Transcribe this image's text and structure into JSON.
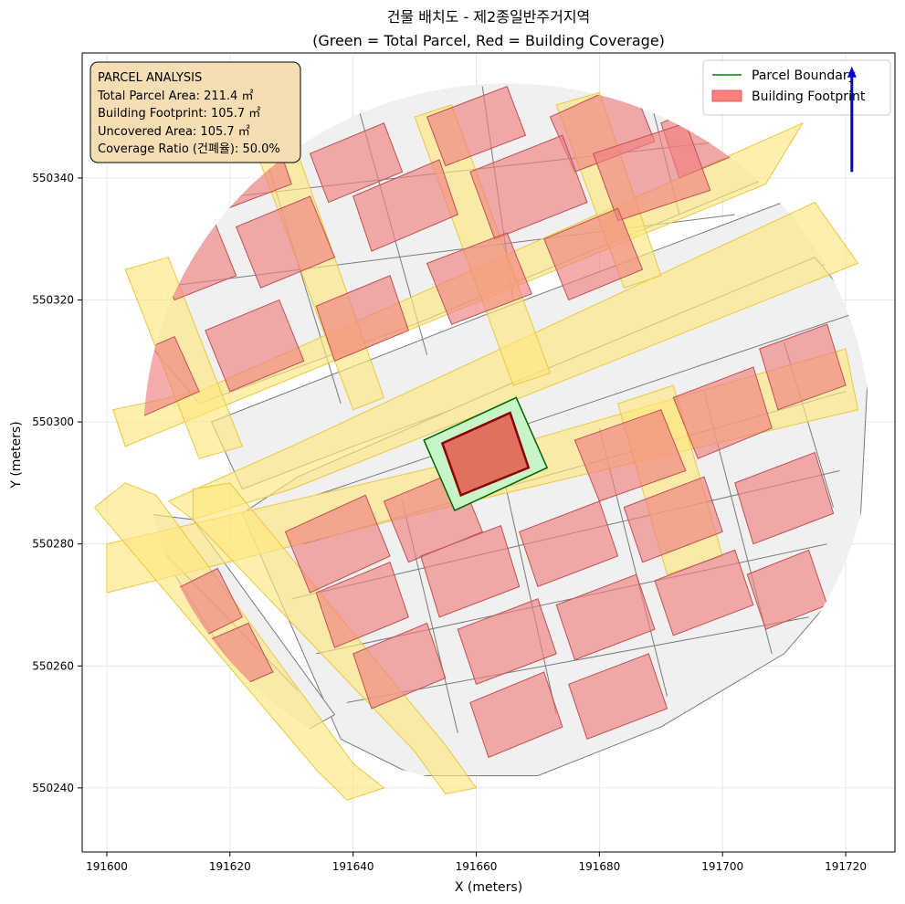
{
  "chart_data": {
    "type": "map",
    "title_line1": "건물 배치도 - 제2종일반주거지역",
    "title_line2": "(Green = Total Parcel, Red = Building Coverage)",
    "xlabel": "X (meters)",
    "ylabel": "Y (meters)",
    "xlim": [
      191596,
      191728
    ],
    "ylim": [
      550229.5,
      550360.5
    ],
    "xticks": [
      191600,
      191620,
      191640,
      191660,
      191680,
      191700,
      191720
    ],
    "yticks": [
      550240,
      550260,
      550280,
      550300,
      550320,
      550340
    ],
    "grid": true,
    "legend_position": "top-right",
    "legend": [
      {
        "label": "Parcel Boundary",
        "kind": "line",
        "color": "#008000"
      },
      {
        "label": "Building Footprint",
        "kind": "patch",
        "color": "#ff7f7f"
      }
    ],
    "info_box": {
      "lines": [
        "PARCEL ANALYSIS",
        "Total Parcel Area: 211.4 ㎡",
        "Building Footprint: 105.7 ㎡",
        "Uncovered Area: 105.7 ㎡",
        "Coverage Ratio (건폐율): 50.0%"
      ],
      "position": "top-left"
    },
    "colors": {
      "parcel_fill": "#f0f0f0",
      "parcel_edge": "#7a7a7a",
      "road_fill": "#ffe680",
      "building_fill": "#f08080",
      "building_edge": "#c05050",
      "target_parcel_fill": "#c8f5c8",
      "target_parcel_edge": "#006400",
      "target_building_fill": "#e07060",
      "target_building_edge": "#8b0000",
      "info_box_fill": "#f5deb3",
      "north_arrow": "#0000dd"
    },
    "target_parcel": [
      [
        191651.5,
        550297.0
      ],
      [
        191666.5,
        550304.0
      ],
      [
        191671.5,
        550292.5
      ],
      [
        191656.5,
        550285.5
      ]
    ],
    "target_building": [
      [
        191654.5,
        550296.5
      ],
      [
        191665.5,
        550301.5
      ],
      [
        191668.5,
        550292.5
      ],
      [
        191657.5,
        550288.0
      ]
    ],
    "north_arrow": {
      "x": 191721,
      "y_from": 550341,
      "y_to": 550358
    },
    "clip_ellipse": {
      "cx": 191665,
      "cy": 550298,
      "rx": 59,
      "ry": 57.5
    },
    "roads": [
      [
        [
          191601,
          550302
        ],
        [
          191615,
          550305
        ],
        [
          191713,
          550349
        ],
        [
          191707,
          550339
        ],
        [
          191603,
          550296
        ]
      ],
      [
        [
          191610,
          550287
        ],
        [
          191630,
          550296
        ],
        [
          191715,
          550336
        ],
        [
          191722,
          550326
        ],
        [
          191630,
          550289
        ],
        [
          191614,
          550284
        ]
      ],
      [
        [
          191600,
          550280
        ],
        [
          191655,
          550293
        ],
        [
          191720,
          550312
        ],
        [
          191722,
          550302
        ],
        [
          191655,
          550286
        ],
        [
          191600,
          550272
        ]
      ],
      [
        [
          191603,
          550290
        ],
        [
          191608,
          550288
        ],
        [
          191640,
          550244
        ],
        [
          191645,
          550240
        ],
        [
          191639,
          550238
        ],
        [
          191634,
          550243
        ],
        [
          191598,
          550286
        ]
      ],
      [
        [
          191614,
          550289
        ],
        [
          191620,
          550290
        ],
        [
          191655,
          550247
        ],
        [
          191660,
          550240
        ],
        [
          191655,
          550239
        ],
        [
          191650,
          550246
        ],
        [
          191614,
          550284
        ]
      ],
      [
        [
          191624,
          550345
        ],
        [
          191630,
          550347
        ],
        [
          191645,
          550304
        ],
        [
          191640,
          550302
        ]
      ],
      [
        [
          191650,
          550350
        ],
        [
          191656,
          550352
        ],
        [
          191672,
          550308
        ],
        [
          191666,
          550306
        ]
      ],
      [
        [
          191673,
          550352
        ],
        [
          191680,
          550354
        ],
        [
          191690,
          550324
        ],
        [
          191684,
          550322
        ]
      ],
      [
        [
          191683,
          550303
        ],
        [
          191692,
          550306
        ],
        [
          191700,
          550278
        ],
        [
          191691,
          550275
        ]
      ],
      [
        [
          191603,
          550325
        ],
        [
          191610,
          550327
        ],
        [
          191622,
          550296
        ],
        [
          191615,
          550294
        ]
      ]
    ],
    "parcels": [
      [
        [
          191612,
          550340
        ],
        [
          191630,
          550348
        ],
        [
          191652,
          550355
        ],
        [
          191680,
          550357
        ],
        [
          191705,
          550352
        ],
        [
          191712,
          550342
        ],
        [
          191650,
          550316
        ],
        [
          191615,
          550303
        ],
        [
          191605,
          550315
        ]
      ],
      [
        [
          191617,
          550300
        ],
        [
          191660,
          550317
        ],
        [
          191715,
          550338
        ],
        [
          191722,
          550328
        ],
        [
          191680,
          550311
        ],
        [
          191640,
          550296
        ],
        [
          191622,
          550289
        ]
      ],
      [
        [
          191631,
          550291
        ],
        [
          191665,
          550306
        ],
        [
          191715,
          550327
        ],
        [
          191724,
          550316
        ],
        [
          191723,
          550296
        ],
        [
          191722,
          550276
        ],
        [
          191710,
          550262
        ],
        [
          191690,
          550250
        ],
        [
          191670,
          550242
        ],
        [
          191650,
          550242
        ],
        [
          191638,
          550248
        ],
        [
          191622,
          550285
        ]
      ],
      [
        [
          191606,
          550285
        ],
        [
          191612,
          550270
        ],
        [
          191622,
          550255
        ],
        [
          191630,
          550248
        ],
        [
          191637,
          550252
        ],
        [
          191614,
          550284
        ]
      ]
    ],
    "parcel_lines": [
      [
        [
          191625,
          550346
        ],
        [
          191638,
          550303
        ]
      ],
      [
        [
          191641,
          550351
        ],
        [
          191652,
          550311
        ]
      ],
      [
        [
          191661,
          550355
        ],
        [
          191666,
          550320
        ]
      ],
      [
        [
          191688,
          550354
        ],
        [
          191693,
          550334
        ]
      ],
      [
        [
          191612,
          550336
        ],
        [
          191700,
          550346
        ]
      ],
      [
        [
          191608,
          550322
        ],
        [
          191702,
          550334
        ]
      ],
      [
        [
          191634,
          550288
        ],
        [
          191722,
          550318
        ]
      ],
      [
        [
          191632,
          550280
        ],
        [
          191720,
          550305
        ]
      ],
      [
        [
          191630,
          550271
        ],
        [
          191719,
          550292
        ]
      ],
      [
        [
          191634,
          550262
        ],
        [
          191717,
          550280
        ]
      ],
      [
        [
          191639,
          550254
        ],
        [
          191714,
          550268
        ]
      ],
      [
        [
          191648,
          550287
        ],
        [
          191657,
          550249
        ]
      ],
      [
        [
          191664,
          550293
        ],
        [
          191673,
          550252
        ]
      ],
      [
        [
          191680,
          550299
        ],
        [
          191691,
          550255
        ]
      ],
      [
        [
          191697,
          550305
        ],
        [
          191708,
          550262
        ]
      ],
      [
        [
          191710,
          550313
        ],
        [
          191718,
          550286
        ]
      ],
      [
        [
          191611,
          550275
        ],
        [
          191626,
          550251
        ]
      ],
      [
        [
          191606,
          550282
        ],
        [
          191631,
          550256
        ]
      ]
    ],
    "buildings": [
      [
        [
          191614,
          550343
        ],
        [
          191627,
          550348
        ],
        [
          191630,
          550339
        ],
        [
          191617,
          550334
        ]
      ],
      [
        [
          191633,
          550344
        ],
        [
          191645,
          550349
        ],
        [
          191648,
          550341
        ],
        [
          191636,
          550336
        ]
      ],
      [
        [
          191652,
          550350
        ],
        [
          191665,
          550355
        ],
        [
          191668,
          550347
        ],
        [
          191655,
          550342
        ]
      ],
      [
        [
          191672,
          550350
        ],
        [
          191685,
          550356
        ],
        [
          191689,
          550346
        ],
        [
          191676,
          550341
        ]
      ],
      [
        [
          191690,
          550349
        ],
        [
          191702,
          550354
        ],
        [
          191705,
          550345
        ],
        [
          191693,
          550340
        ]
      ],
      [
        [
          191607,
          550330
        ],
        [
          191617,
          550334
        ],
        [
          191621,
          550324
        ],
        [
          191611,
          550320
        ]
      ],
      [
        [
          191621,
          550332
        ],
        [
          191633,
          550337
        ],
        [
          191637,
          550327
        ],
        [
          191625,
          550322
        ]
      ],
      [
        [
          191640,
          550337
        ],
        [
          191654,
          550343
        ],
        [
          191657,
          550334
        ],
        [
          191643,
          550328
        ]
      ],
      [
        [
          191659,
          550341
        ],
        [
          191674,
          550347
        ],
        [
          191678,
          550336
        ],
        [
          191663,
          550330
        ]
      ],
      [
        [
          191679,
          550344
        ],
        [
          191694,
          550349
        ],
        [
          191698,
          550338
        ],
        [
          191683,
          550333
        ]
      ],
      [
        [
          191602,
          550310
        ],
        [
          191611,
          550314
        ],
        [
          191615,
          550305
        ],
        [
          191606,
          550301
        ]
      ],
      [
        [
          191616,
          550315
        ],
        [
          191628,
          550320
        ],
        [
          191632,
          550310
        ],
        [
          191620,
          550305
        ]
      ],
      [
        [
          191634,
          550319
        ],
        [
          191646,
          550324
        ],
        [
          191649,
          550315
        ],
        [
          191637,
          550310
        ]
      ],
      [
        [
          191652,
          550326
        ],
        [
          191665,
          550331
        ],
        [
          191669,
          550321
        ],
        [
          191656,
          550316
        ]
      ],
      [
        [
          191671,
          550330
        ],
        [
          191683,
          550335
        ],
        [
          191687,
          550325
        ],
        [
          191675,
          550320
        ]
      ],
      [
        [
          191629,
          550282
        ],
        [
          191642,
          550288
        ],
        [
          191646,
          550278
        ],
        [
          191633,
          550272
        ]
      ],
      [
        [
          191645,
          550287
        ],
        [
          191657,
          550292
        ],
        [
          191661,
          550282
        ],
        [
          191649,
          550277
        ]
      ],
      [
        [
          191676,
          550297
        ],
        [
          191690,
          550302
        ],
        [
          191694,
          550292
        ],
        [
          191680,
          550287
        ]
      ],
      [
        [
          191692,
          550304
        ],
        [
          191705,
          550309
        ],
        [
          191708,
          550299
        ],
        [
          191696,
          550294
        ]
      ],
      [
        [
          191706,
          550312
        ],
        [
          191717,
          550316
        ],
        [
          191720,
          550306
        ],
        [
          191709,
          550302
        ]
      ],
      [
        [
          191634,
          550272
        ],
        [
          191646,
          550277
        ],
        [
          191649,
          550268
        ],
        [
          191637,
          550263
        ]
      ],
      [
        [
          191651,
          550278
        ],
        [
          191664,
          550283
        ],
        [
          191667,
          550273
        ],
        [
          191654,
          550268
        ]
      ],
      [
        [
          191667,
          550282
        ],
        [
          191680,
          550287
        ],
        [
          191683,
          550278
        ],
        [
          191670,
          550273
        ]
      ],
      [
        [
          191684,
          550286
        ],
        [
          191697,
          550291
        ],
        [
          191700,
          550282
        ],
        [
          191687,
          550277
        ]
      ],
      [
        [
          191702,
          550290
        ],
        [
          191715,
          550295
        ],
        [
          191718,
          550285
        ],
        [
          191705,
          550280
        ]
      ],
      [
        [
          191640,
          550262
        ],
        [
          191652,
          550267
        ],
        [
          191655,
          550258
        ],
        [
          191643,
          550253
        ]
      ],
      [
        [
          191657,
          550266
        ],
        [
          191670,
          550271
        ],
        [
          191673,
          550262
        ],
        [
          191660,
          550257
        ]
      ],
      [
        [
          191673,
          550270
        ],
        [
          191686,
          550275
        ],
        [
          191689,
          550266
        ],
        [
          191676,
          550261
        ]
      ],
      [
        [
          191689,
          550274
        ],
        [
          191702,
          550279
        ],
        [
          191705,
          550270
        ],
        [
          191692,
          550265
        ]
      ],
      [
        [
          191704,
          550275
        ],
        [
          191714,
          550279
        ],
        [
          191717,
          550270
        ],
        [
          191707,
          550266
        ]
      ],
      [
        [
          191659,
          550254
        ],
        [
          191671,
          550259
        ],
        [
          191674,
          550250
        ],
        [
          191662,
          550245
        ]
      ],
      [
        [
          191675,
          550257
        ],
        [
          191688,
          550262
        ],
        [
          191691,
          550253
        ],
        [
          191678,
          550248
        ]
      ],
      [
        [
          191610,
          550272
        ],
        [
          191618,
          550276
        ],
        [
          191622,
          550268
        ],
        [
          191614,
          550264
        ]
      ],
      [
        [
          191616,
          550264
        ],
        [
          191623,
          550267
        ],
        [
          191627,
          550259
        ],
        [
          191620,
          550256
        ]
      ]
    ]
  }
}
